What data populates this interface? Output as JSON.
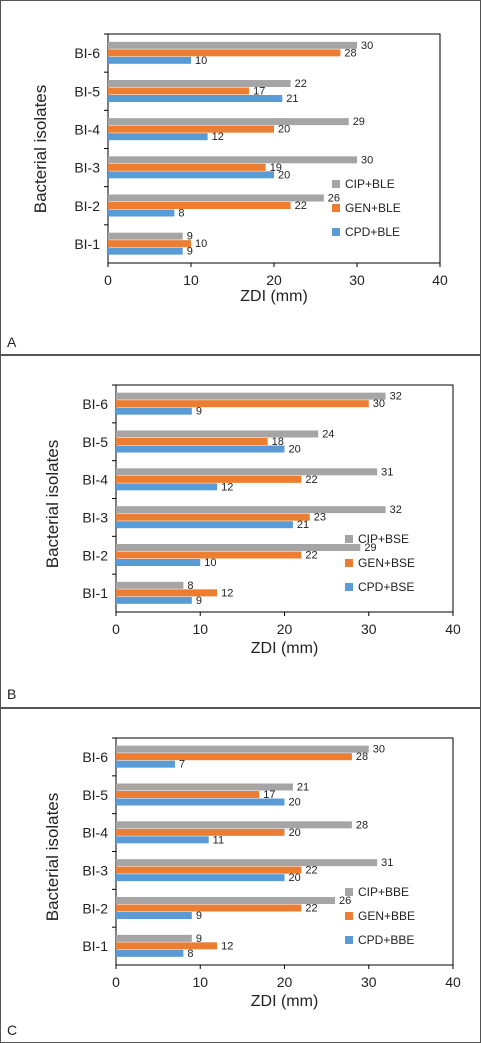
{
  "chart_data": [
    {
      "type": "bar",
      "panel_label": "A",
      "orientation": "horizontal",
      "categories": [
        "BI-1",
        "BI-2",
        "BI-3",
        "BI-4",
        "BI-5",
        "BI-6"
      ],
      "series": [
        {
          "name": "CIP+BLE",
          "color": "#a5a5a5",
          "values": [
            9,
            26,
            30,
            29,
            22,
            30
          ]
        },
        {
          "name": "GEN+BLE",
          "color": "#ed7d31",
          "values": [
            10,
            22,
            19,
            20,
            17,
            28
          ]
        },
        {
          "name": "CPD+BLE",
          "color": "#5b9bd5",
          "values": [
            9,
            8,
            20,
            12,
            21,
            10
          ]
        }
      ],
      "xlabel": "ZDI (mm)",
      "ylabel": "Bacterial isolates",
      "xlim": [
        0,
        40
      ],
      "xticks": [
        "0",
        "10",
        "20",
        "30",
        "40"
      ],
      "legend": "bottom-right"
    },
    {
      "type": "bar",
      "panel_label": "B",
      "orientation": "horizontal",
      "categories": [
        "BI-1",
        "BI-2",
        "BI-3",
        "BI-4",
        "BI-5",
        "BI-6"
      ],
      "series": [
        {
          "name": "CIP+BSE",
          "color": "#a5a5a5",
          "values": [
            8,
            29,
            32,
            31,
            24,
            32
          ]
        },
        {
          "name": "GEN+BSE",
          "color": "#ed7d31",
          "values": [
            12,
            22,
            23,
            22,
            18,
            30
          ]
        },
        {
          "name": "CPD+BSE",
          "color": "#5b9bd5",
          "values": [
            9,
            10,
            21,
            12,
            20,
            9
          ]
        }
      ],
      "xlabel": "ZDI (mm)",
      "ylabel": "Bacterial isolates",
      "xlim": [
        0,
        40
      ],
      "xticks": [
        "0",
        "10",
        "20",
        "30",
        "40"
      ],
      "legend": "bottom-right"
    },
    {
      "type": "bar",
      "panel_label": "C",
      "orientation": "horizontal",
      "categories": [
        "BI-1",
        "BI-2",
        "BI-3",
        "BI-4",
        "BI-5",
        "BI-6"
      ],
      "series": [
        {
          "name": "CIP+BBE",
          "color": "#a5a5a5",
          "values": [
            9,
            26,
            31,
            28,
            21,
            30
          ]
        },
        {
          "name": "GEN+BBE",
          "color": "#ed7d31",
          "values": [
            12,
            22,
            22,
            20,
            17,
            28
          ]
        },
        {
          "name": "CPD+BBE",
          "color": "#5b9bd5",
          "values": [
            8,
            9,
            20,
            11,
            20,
            7
          ]
        }
      ],
      "xlabel": "ZDI (mm)",
      "ylabel": "Bacterial isolates",
      "xlim": [
        0,
        40
      ],
      "xticks": [
        "0",
        "10",
        "20",
        "30",
        "40"
      ],
      "legend": "bottom-right"
    }
  ]
}
